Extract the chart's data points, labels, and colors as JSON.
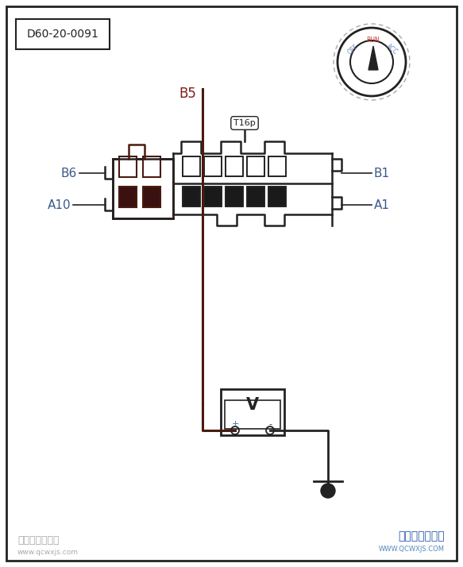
{
  "border_color": "#222222",
  "title_box_text": "D60-20-0091",
  "wire_color_brown": "#4a1a10",
  "wire_color_black": "#222222",
  "label_color_blue": "#3a5a8a",
  "label_color_red": "#7a2020",
  "connector_label": "T16p",
  "pin_labels_left": [
    "B6",
    "A10"
  ],
  "pin_labels_right": [
    "B1",
    "A1"
  ],
  "b5_label": "B5",
  "footer_left": "汽车维修技术网",
  "footer_right": "汽车维修技术网",
  "footer_url_left": "www.qcwxjs.com",
  "footer_url_right": "WWW.QCWXJS.COM"
}
